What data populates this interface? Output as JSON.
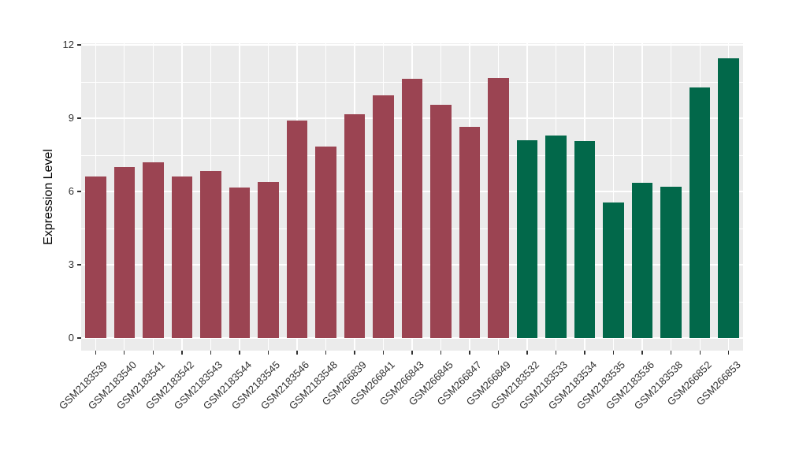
{
  "figure": {
    "background": "#FFFFFF"
  },
  "axes": {
    "tick_color": "#333333",
    "tick_text_color": "#303030"
  },
  "chart_data": {
    "type": "bar",
    "title": "",
    "xlabel": "",
    "ylabel": "Expression Level",
    "ylim": [
      0,
      12
    ],
    "yticks": [
      0,
      3,
      6,
      9,
      12
    ],
    "minor_yticks": [
      1.5,
      4.5,
      7.5,
      10.5
    ],
    "grid": {
      "panel_bg": "#EBEBEB",
      "line_color": "#FFFFFF",
      "vertical_major_at_bar_centers": true
    },
    "legend_position": "none",
    "bar_colors": {
      "groupA": "#9B4452",
      "groupB": "#02684A"
    },
    "categories": [
      "GSM2183539",
      "GSM2183540",
      "GSM2183541",
      "GSM2183542",
      "GSM2183543",
      "GSM2183544",
      "GSM2183545",
      "GSM2183546",
      "GSM2183548",
      "GSM266839",
      "GSM266841",
      "GSM266843",
      "GSM266845",
      "GSM266847",
      "GSM266849",
      "GSM2183532",
      "GSM2183533",
      "GSM2183534",
      "GSM2183535",
      "GSM2183536",
      "GSM2183538",
      "GSM266852",
      "GSM266853"
    ],
    "values": [
      6.6,
      7.0,
      7.2,
      6.6,
      6.85,
      6.15,
      6.4,
      8.9,
      7.85,
      9.15,
      9.95,
      10.6,
      9.55,
      8.65,
      10.65,
      8.1,
      8.3,
      8.05,
      5.55,
      6.35,
      6.2,
      10.25,
      11.45
    ],
    "bar_groups": [
      "groupA",
      "groupA",
      "groupA",
      "groupA",
      "groupA",
      "groupA",
      "groupA",
      "groupA",
      "groupA",
      "groupA",
      "groupA",
      "groupA",
      "groupA",
      "groupA",
      "groupA",
      "groupB",
      "groupB",
      "groupB",
      "groupB",
      "groupB",
      "groupB",
      "groupB",
      "groupB"
    ]
  }
}
